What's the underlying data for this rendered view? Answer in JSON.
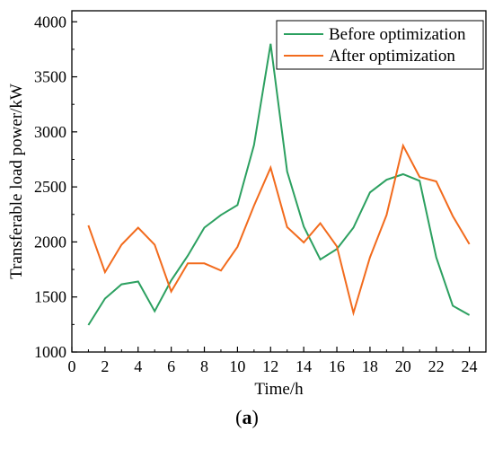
{
  "caption": {
    "open": "(",
    "letter": "a",
    "close": ")"
  },
  "chart_data": {
    "type": "line",
    "title": "",
    "xlabel": "Time/h",
    "ylabel": "Transferable load power/kW",
    "xlim": [
      0,
      25
    ],
    "ylim": [
      1000,
      4100
    ],
    "xticks": [
      0,
      2,
      4,
      6,
      8,
      10,
      12,
      14,
      16,
      18,
      20,
      22,
      24
    ],
    "yticks": [
      1000,
      1500,
      2000,
      2500,
      3000,
      3500,
      4000
    ],
    "grid": false,
    "legend_position": "top-right",
    "x": [
      1,
      2,
      3,
      4,
      5,
      6,
      7,
      8,
      9,
      10,
      11,
      12,
      13,
      14,
      15,
      16,
      17,
      18,
      19,
      20,
      21,
      22,
      23,
      24
    ],
    "series": [
      {
        "name": "Before optimization",
        "color": "#2ca060",
        "values": [
          1245,
          1485,
          1615,
          1640,
          1370,
          1650,
          1875,
          2130,
          2245,
          2335,
          2880,
          3800,
          2640,
          2140,
          1840,
          1935,
          2130,
          2450,
          2565,
          2615,
          2555,
          1860,
          1420,
          1335
        ]
      },
      {
        "name": "After optimization",
        "color": "#f26b1d",
        "values": [
          2150,
          1725,
          1975,
          2130,
          1975,
          1550,
          1805,
          1805,
          1740,
          1955,
          2330,
          2675,
          2135,
          1995,
          2170,
          1960,
          1355,
          1860,
          2245,
          2875,
          2590,
          2550,
          2235,
          1980
        ]
      }
    ]
  }
}
